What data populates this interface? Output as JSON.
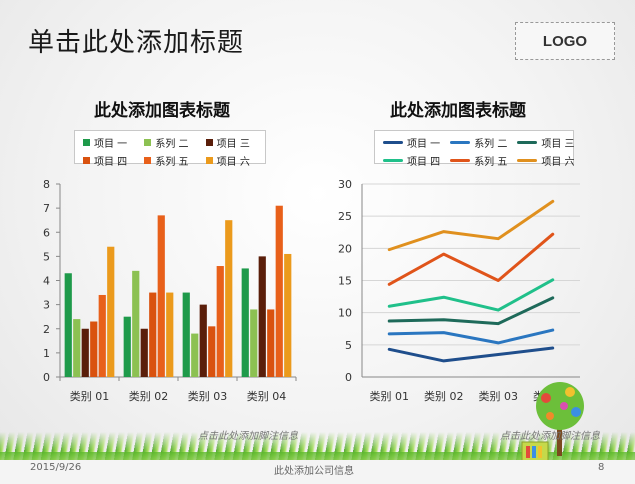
{
  "slide": {
    "title": "单击此处添加标题",
    "logo": "LOGO",
    "footnote_left": "点击此处添加脚注信息",
    "footnote_right": "点击此处添加脚注信息",
    "footer_date": "2015/9/26",
    "footer_company": "此处添加公司信息",
    "page_number": "8"
  },
  "chart_data": [
    {
      "type": "bar",
      "title": "此处添加图表标题",
      "categories": [
        "类别 01",
        "类别 02",
        "类别 03",
        "类别 04"
      ],
      "ylim": [
        0,
        8
      ],
      "yticks": [
        "0",
        "1",
        "2",
        "3",
        "4",
        "5",
        "6",
        "7",
        "8"
      ],
      "grid": false,
      "legend": "top",
      "series": [
        {
          "name": "项目 一",
          "color": "#1e9a4a",
          "values": [
            4.3,
            2.5,
            3.5,
            4.5
          ]
        },
        {
          "name": "系列 二",
          "color": "#8cc152",
          "values": [
            2.4,
            4.4,
            1.8,
            2.8
          ]
        },
        {
          "name": "项目 三",
          "color": "#5a1e0a",
          "values": [
            2.0,
            2.0,
            3.0,
            5.0
          ]
        },
        {
          "name": "项目 四",
          "color": "#d9520f",
          "values": [
            2.3,
            3.5,
            2.1,
            2.8
          ]
        },
        {
          "name": "系列 五",
          "color": "#e8601a",
          "values": [
            3.4,
            6.7,
            4.6,
            7.1
          ]
        },
        {
          "name": "项目 六",
          "color": "#eb9a1c",
          "values": [
            5.4,
            3.5,
            6.5,
            5.1
          ]
        }
      ]
    },
    {
      "type": "line",
      "title": "此处添加图表标题",
      "categories": [
        "类别 01",
        "类别 02",
        "类别 03",
        "类别 04"
      ],
      "ylim": [
        0,
        30
      ],
      "yticks": [
        "0",
        "5",
        "10",
        "15",
        "20",
        "25",
        "30"
      ],
      "grid": true,
      "legend": "top",
      "series": [
        {
          "name": "项目 一",
          "color": "#1f4e8c",
          "values": [
            4.3,
            2.5,
            3.5,
            4.5
          ]
        },
        {
          "name": "系列 二",
          "color": "#2a76c0",
          "values": [
            6.7,
            6.9,
            5.3,
            7.3
          ]
        },
        {
          "name": "项目 三",
          "color": "#1e6a5a",
          "values": [
            8.7,
            8.9,
            8.3,
            12.3
          ]
        },
        {
          "name": "项目 四",
          "color": "#20c08a",
          "values": [
            11.0,
            12.4,
            10.4,
            15.1
          ]
        },
        {
          "name": "系列 五",
          "color": "#e0541a",
          "values": [
            14.4,
            19.1,
            15.0,
            22.2
          ]
        },
        {
          "name": "项目 六",
          "color": "#e0901e",
          "values": [
            19.8,
            22.6,
            21.5,
            27.3
          ]
        }
      ]
    }
  ]
}
